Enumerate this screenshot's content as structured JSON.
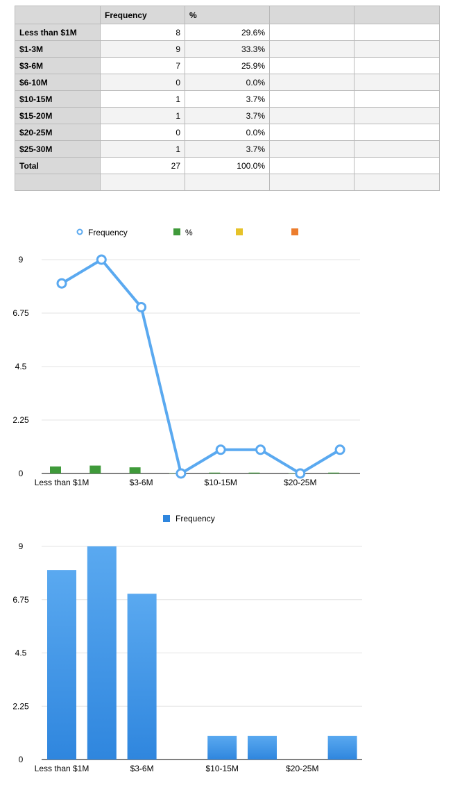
{
  "table": {
    "headers": [
      "",
      "Frequency",
      "%",
      "",
      ""
    ],
    "rows": [
      {
        "label": "Less than $1M",
        "freq": "8",
        "pct": "29.6%"
      },
      {
        "label": "$1-3M",
        "freq": "9",
        "pct": "33.3%"
      },
      {
        "label": "$3-6M",
        "freq": "7",
        "pct": "25.9%"
      },
      {
        "label": "$6-10M",
        "freq": "0",
        "pct": "0.0%"
      },
      {
        "label": "$10-15M",
        "freq": "1",
        "pct": "3.7%"
      },
      {
        "label": "$15-20M",
        "freq": "1",
        "pct": "3.7%"
      },
      {
        "label": "$20-25M",
        "freq": "0",
        "pct": "0.0%"
      },
      {
        "label": "$25-30M",
        "freq": "1",
        "pct": "3.7%"
      },
      {
        "label": "Total",
        "freq": "27",
        "pct": "100.0%"
      },
      {
        "label": "",
        "freq": "",
        "pct": ""
      }
    ]
  },
  "chart_data": [
    {
      "type": "line",
      "categories": [
        "Less than $1M",
        "$1-3M",
        "$3-6M",
        "$6-10M",
        "$10-15M",
        "$15-20M",
        "$20-25M",
        "$25-30M"
      ],
      "tick_labels": [
        "Less than $1M",
        "$3-6M",
        "$10-15M",
        "$20-25M"
      ],
      "series": [
        {
          "name": "Frequency",
          "kind": "line",
          "color": "#5aa9f0",
          "values": [
            8,
            9,
            7,
            0,
            1,
            1,
            0,
            1
          ]
        },
        {
          "name": "%",
          "kind": "bar",
          "color": "#3f9a3a",
          "values": [
            0.296,
            0.333,
            0.259,
            0,
            0.037,
            0.037,
            0,
            0.037
          ]
        }
      ],
      "legend": [
        {
          "label": "Frequency",
          "color": "#5aa9f0",
          "marker": "circle"
        },
        {
          "label": "%",
          "color": "#3f9a3a",
          "marker": "square"
        },
        {
          "label": "",
          "color": "#e6c229",
          "marker": "square"
        },
        {
          "label": "",
          "color": "#ec7d2e",
          "marker": "square"
        }
      ],
      "yticks": [
        "0",
        "2.25",
        "4.5",
        "6.75",
        "9"
      ],
      "ylim": [
        0,
        9
      ],
      "grid": true,
      "legend_position": "top"
    },
    {
      "type": "bar",
      "categories": [
        "Less than $1M",
        "$1-3M",
        "$3-6M",
        "$6-10M",
        "$10-15M",
        "$15-20M",
        "$20-25M",
        "$25-30M"
      ],
      "tick_labels": [
        "Less than $1M",
        "$3-6M",
        "$10-15M",
        "$20-25M"
      ],
      "series": [
        {
          "name": "Frequency",
          "color": "#2f86de",
          "values": [
            8,
            9,
            7,
            0,
            1,
            1,
            0,
            1
          ]
        }
      ],
      "legend": [
        {
          "label": "Frequency",
          "color": "#2f86de",
          "marker": "square"
        }
      ],
      "yticks": [
        "0",
        "2.25",
        "4.5",
        "6.75",
        "9"
      ],
      "ylim": [
        0,
        9
      ],
      "grid": true,
      "legend_position": "top"
    }
  ]
}
